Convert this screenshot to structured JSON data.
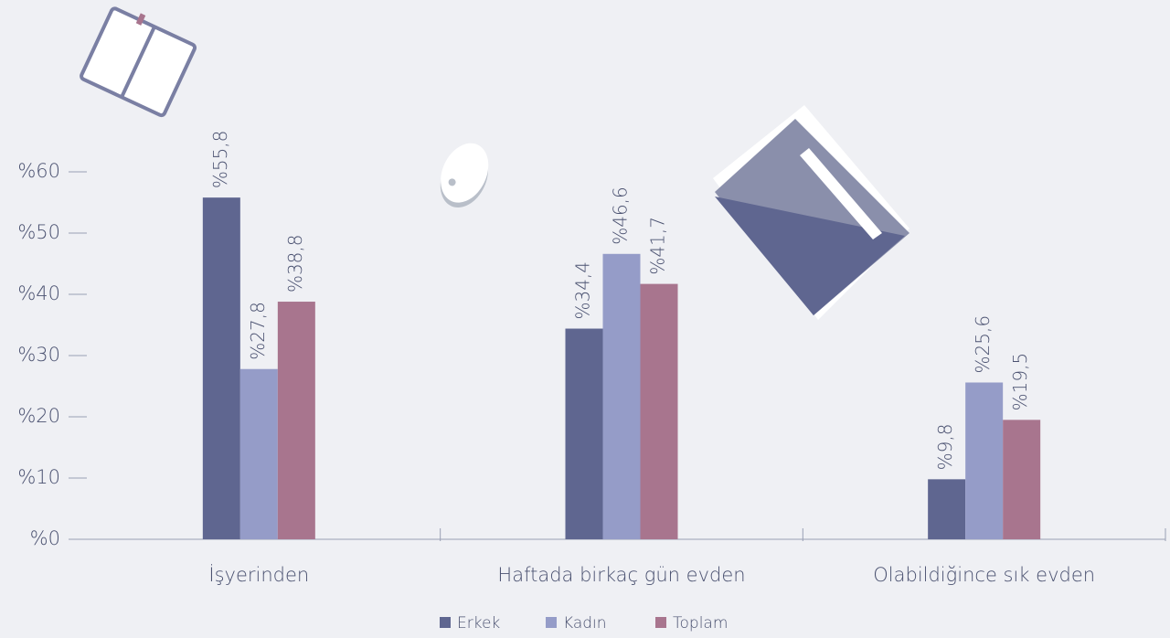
{
  "chart_data": {
    "type": "bar",
    "categories": [
      "İşyerinden",
      "Haftada birkaç gün evden",
      "Olabildiğince sık evden"
    ],
    "series": [
      {
        "name": "Erkek",
        "color": "#5f6690",
        "values": [
          55.8,
          34.4,
          9.8
        ],
        "value_labels": [
          "%55,8",
          "%34,4",
          "%9,8"
        ]
      },
      {
        "name": "Kadın",
        "color": "#959cc8",
        "values": [
          27.8,
          46.6,
          25.6
        ],
        "value_labels": [
          "%27,8",
          "%46,6",
          "%25,6"
        ]
      },
      {
        "name": "Toplam",
        "color": "#a8758e",
        "values": [
          38.8,
          41.7,
          19.5
        ],
        "value_labels": [
          "%38,8",
          "%41,7",
          "%19,5"
        ]
      }
    ],
    "ylim": [
      0,
      60
    ],
    "yticks": [
      {
        "value": 0,
        "label": "%0"
      },
      {
        "value": 10,
        "label": "%10"
      },
      {
        "value": 20,
        "label": "%20"
      },
      {
        "value": 30,
        "label": "%30"
      },
      {
        "value": 40,
        "label": "%40"
      },
      {
        "value": 50,
        "label": "%50"
      },
      {
        "value": 60,
        "label": "%60"
      }
    ],
    "legend": "bottom"
  }
}
